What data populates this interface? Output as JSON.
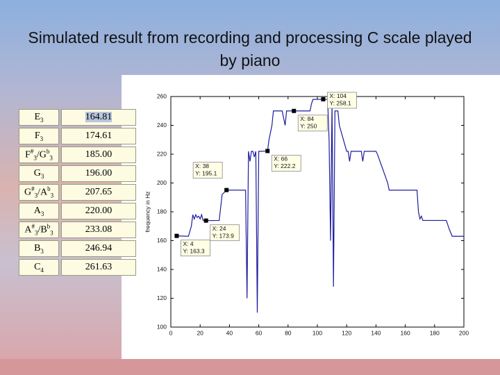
{
  "title": "Simulated result from recording and processing C scale played by piano",
  "table": {
    "rows": [
      {
        "note": [
          {
            "base": "E",
            "sub": "3"
          }
        ],
        "freq": "164.81"
      },
      {
        "note": [
          {
            "base": "F",
            "sub": "3"
          }
        ],
        "freq": "174.61"
      },
      {
        "note": [
          {
            "base": "F",
            "sup": "#",
            "sub": "3"
          },
          {
            "base": "/G",
            "sup": "b",
            "sub": "3"
          }
        ],
        "freq": "185.00"
      },
      {
        "note": [
          {
            "base": "G",
            "sub": "3"
          }
        ],
        "freq": "196.00"
      },
      {
        "note": [
          {
            "base": "G",
            "sup": "#",
            "sub": "3"
          },
          {
            "base": "/A",
            "sup": "b",
            "sub": "3"
          }
        ],
        "freq": "207.65"
      },
      {
        "note": [
          {
            "base": "A",
            "sub": "3"
          }
        ],
        "freq": "220.00"
      },
      {
        "note": [
          {
            "base": "A",
            "sup": "#",
            "sub": "3"
          },
          {
            "base": "/B",
            "sup": "b",
            "sub": "3"
          }
        ],
        "freq": "233.08"
      },
      {
        "note": [
          {
            "base": "B",
            "sub": "3"
          }
        ],
        "freq": "246.94"
      },
      {
        "note": [
          {
            "base": "C",
            "sub": "4"
          }
        ],
        "freq": "261.63"
      }
    ]
  },
  "chart_data": {
    "type": "line",
    "ylabel": "frequency in Hz",
    "color": "#1c1c9e",
    "x": [
      4,
      12,
      14,
      15,
      16,
      17,
      18,
      19,
      20,
      21,
      22,
      24,
      33,
      35,
      38,
      51,
      52,
      53,
      54,
      55,
      56,
      57,
      58,
      59,
      60,
      61,
      66,
      67,
      69,
      70,
      72,
      76,
      77,
      78,
      79,
      80,
      84,
      95,
      96,
      97,
      104,
      107,
      108,
      109,
      110,
      111,
      112,
      114,
      115,
      120,
      121,
      122,
      123,
      130,
      131,
      132,
      140,
      141,
      148,
      149,
      150,
      168,
      169,
      170,
      171,
      172,
      173,
      188,
      190,
      192,
      200
    ],
    "values": [
      163.3,
      163,
      170,
      178,
      175,
      178,
      176,
      177,
      175,
      178,
      174,
      173.9,
      174,
      192,
      195.1,
      195,
      120,
      222,
      215,
      222,
      222,
      218,
      222,
      110,
      222,
      222,
      222.2,
      230,
      240,
      250,
      250,
      250,
      245,
      240,
      250,
      250,
      250,
      250,
      255,
      258,
      258.1,
      258,
      230,
      160,
      255,
      128,
      250,
      250,
      240,
      222,
      222,
      215,
      222,
      222,
      215,
      222,
      222,
      220,
      200,
      195,
      195,
      195,
      180,
      175,
      177,
      174,
      174,
      174,
      168,
      163,
      163
    ],
    "xlim": [
      0,
      200
    ],
    "xticks": [
      0,
      20,
      40,
      60,
      80,
      100,
      120,
      140,
      160,
      180,
      200
    ],
    "ylim": [
      100,
      260
    ],
    "yticks": [
      100,
      120,
      140,
      160,
      180,
      200,
      220,
      240,
      260
    ],
    "annotations": [
      {
        "x": 4,
        "y": 163.3,
        "lines": [
          "X: 4",
          "Y: 163.3"
        ]
      },
      {
        "x": 24,
        "y": 173.9,
        "lines": [
          "X: 24",
          "Y: 173.9"
        ]
      },
      {
        "x": 38,
        "y": 195.1,
        "lines": [
          "X: 38",
          "Y: 195.1"
        ]
      },
      {
        "x": 66,
        "y": 222.2,
        "lines": [
          "X: 66",
          "Y: 222.2"
        ]
      },
      {
        "x": 84,
        "y": 250,
        "lines": [
          "X: 84",
          "Y: 250"
        ]
      },
      {
        "x": 104,
        "y": 258.1,
        "lines": [
          "X: 104",
          "Y: 258.1"
        ]
      }
    ]
  }
}
